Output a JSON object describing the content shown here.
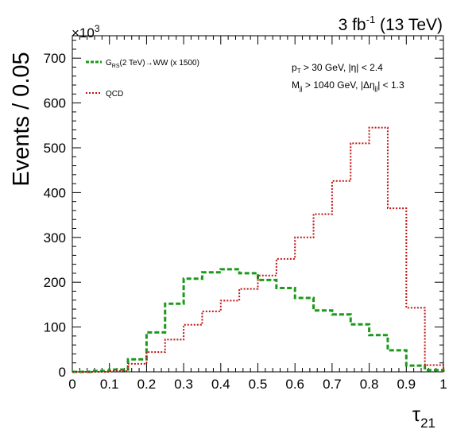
{
  "chart_data": {
    "type": "line",
    "top_right_label": {
      "main": "3 fb",
      "sup": "-1",
      "rest": " (13 TeV)"
    },
    "exponent_label": {
      "base": "×10",
      "sup": "3"
    },
    "ylabel": "Events / 0.05",
    "xlabel": {
      "main": "τ",
      "sub": "21"
    },
    "xlim": [
      0,
      1
    ],
    "ylim": [
      0,
      750
    ],
    "x_ticks": [
      "0",
      "0.1",
      "0.2",
      "0.3",
      "0.4",
      "0.5",
      "0.6",
      "0.7",
      "0.8",
      "0.9",
      "1"
    ],
    "x_tick_values": [
      0,
      0.1,
      0.2,
      0.3,
      0.4,
      0.5,
      0.6,
      0.7,
      0.8,
      0.9,
      1
    ],
    "y_ticks": [
      "0",
      "100",
      "200",
      "300",
      "400",
      "500",
      "600",
      "700"
    ],
    "y_tick_values": [
      0,
      100,
      200,
      300,
      400,
      500,
      600,
      700
    ],
    "bin_edges": [
      0,
      0.05,
      0.1,
      0.15,
      0.2,
      0.25,
      0.3,
      0.35,
      0.4,
      0.45,
      0.5,
      0.55,
      0.6,
      0.65,
      0.7,
      0.75,
      0.8,
      0.85,
      0.9,
      0.95,
      1.0
    ],
    "cuts": [
      {
        "parts": [
          {
            "t": "p"
          },
          {
            "t": "T",
            "sub": true
          },
          {
            "t": " > 30 GeV, |η| < 2.4"
          }
        ]
      },
      {
        "parts": [
          {
            "t": "M"
          },
          {
            "t": "jj",
            "sub": true
          },
          {
            "t": " > 1040 GeV, |Δη"
          },
          {
            "t": "jj",
            "sub": true
          },
          {
            "t": "| < 1.3"
          }
        ]
      }
    ],
    "series": [
      {
        "name_parts": [
          {
            "t": "G"
          },
          {
            "t": "RS",
            "sub": true
          },
          {
            "t": "(2 TeV)→WW (x 1500)"
          }
        ],
        "color": "#1a9a1a",
        "style": "dashed",
        "values": [
          0,
          2,
          5,
          28,
          88,
          152,
          208,
          222,
          229,
          220,
          205,
          187,
          165,
          137,
          128,
          106,
          82,
          48,
          14,
          4
        ]
      },
      {
        "name_parts": [
          {
            "t": "QCD"
          }
        ],
        "color": "#c01414",
        "style": "dotted",
        "values": [
          0,
          0,
          2,
          18,
          44,
          72,
          105,
          135,
          159,
          185,
          215,
          252,
          300,
          352,
          426,
          510,
          545,
          365,
          143,
          15
        ]
      }
    ]
  }
}
